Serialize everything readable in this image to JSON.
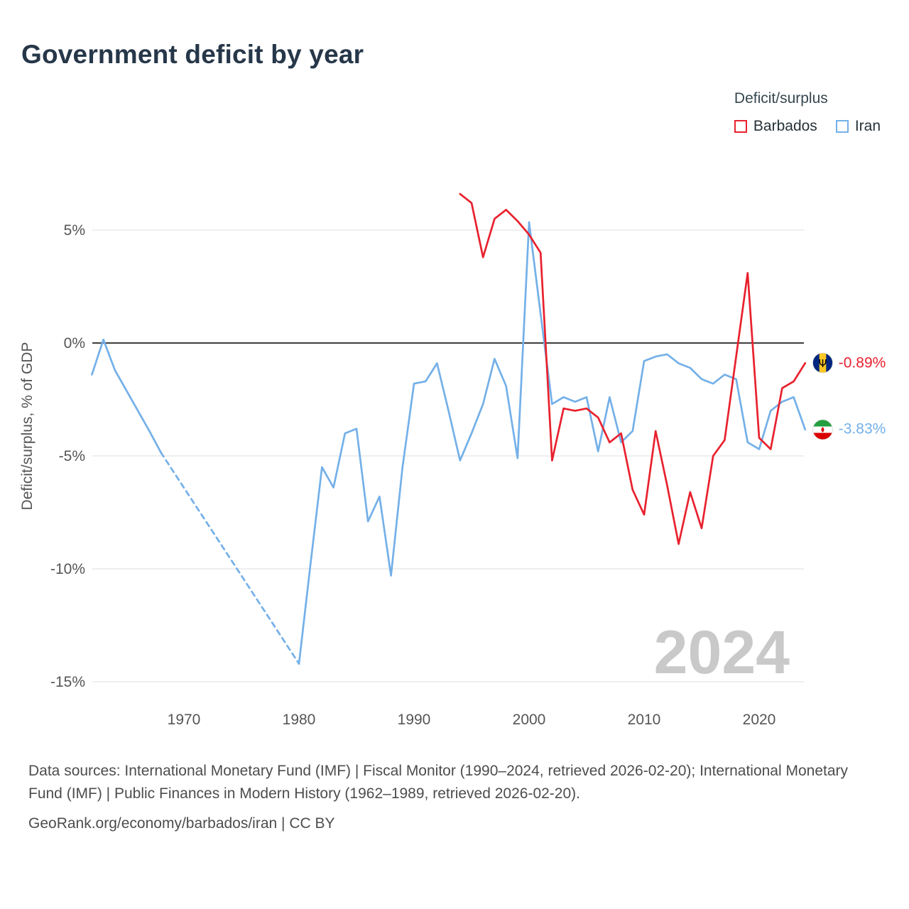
{
  "header": {
    "title": "Government deficit by year"
  },
  "legend": {
    "title": "Deficit/surplus",
    "items": [
      {
        "label": "Barbados",
        "color": "#e8212e"
      },
      {
        "label": "Iran",
        "color": "#74b0e8"
      }
    ]
  },
  "watermark": "2024",
  "footer": {
    "sources": "Data sources: International Monetary Fund (IMF) | Fiscal Monitor (1990–2024, retrieved 2026-02-20); International Monetary Fund (IMF) | Public Finances in Modern History (1962–1989, retrieved 2026-02-20).",
    "attribution": "GeoRank.org/economy/barbados/iran | CC BY"
  },
  "chart_data": {
    "type": "line",
    "title": "Government deficit by year",
    "ylabel": "Deficit/surplus, % of GDP",
    "xlabel": "",
    "ylim": [
      -16,
      7.5
    ],
    "xlim": [
      1962,
      2024
    ],
    "grid": "horizontal",
    "zero_line": true,
    "legend_position": "top-right",
    "yticks": {
      "values": [
        5,
        0,
        -5,
        -10,
        -15
      ],
      "labels": [
        "5%",
        "0%",
        "-5%",
        "-10%",
        "-15%"
      ]
    },
    "xticks": {
      "values": [
        1970,
        1980,
        1990,
        2000,
        2010,
        2020
      ],
      "labels": [
        "1970",
        "1980",
        "1990",
        "2000",
        "2010",
        "2020"
      ]
    },
    "series": [
      {
        "name": "Barbados",
        "color": "#e8212e",
        "end_label": "-0.89%",
        "segments": [
          {
            "style": "solid",
            "points": [
              [
                1994,
                6.6
              ],
              [
                1995,
                6.2
              ],
              [
                1996,
                3.8
              ],
              [
                1997,
                5.5
              ],
              [
                1998,
                5.9
              ],
              [
                1999,
                5.4
              ],
              [
                2000,
                4.8
              ],
              [
                2001,
                4.0
              ],
              [
                2002,
                -5.2
              ],
              [
                2003,
                -2.9
              ],
              [
                2004,
                -3.0
              ],
              [
                2005,
                -2.9
              ],
              [
                2006,
                -3.3
              ],
              [
                2007,
                -4.4
              ],
              [
                2008,
                -4.0
              ],
              [
                2009,
                -6.5
              ],
              [
                2010,
                -7.6
              ],
              [
                2011,
                -3.9
              ],
              [
                2012,
                -6.3
              ],
              [
                2013,
                -8.9
              ],
              [
                2014,
                -6.6
              ],
              [
                2015,
                -8.2
              ],
              [
                2016,
                -5.0
              ],
              [
                2017,
                -4.3
              ],
              [
                2018,
                -0.6
              ],
              [
                2019,
                3.1
              ],
              [
                2020,
                -4.2
              ],
              [
                2021,
                -4.7
              ],
              [
                2022,
                -2.0
              ],
              [
                2023,
                -1.7
              ],
              [
                2024,
                -0.89
              ]
            ]
          }
        ]
      },
      {
        "name": "Iran",
        "color": "#74b0e8",
        "end_label": "-3.83%",
        "segments": [
          {
            "style": "solid",
            "points": [
              [
                1962,
                -1.4
              ],
              [
                1963,
                0.15
              ],
              [
                1964,
                -1.2
              ],
              [
                1965,
                -2.1
              ],
              [
                1966,
                -3.0
              ],
              [
                1967,
                -3.9
              ],
              [
                1968,
                -4.85
              ]
            ]
          },
          {
            "style": "dashed",
            "points": [
              [
                1968,
                -4.85
              ],
              [
                1980,
                -14.2
              ]
            ]
          },
          {
            "style": "solid",
            "points": [
              [
                1980,
                -14.2
              ],
              [
                1981,
                -9.8
              ],
              [
                1982,
                -5.5
              ],
              [
                1983,
                -6.4
              ],
              [
                1984,
                -4.0
              ],
              [
                1985,
                -3.8
              ],
              [
                1986,
                -7.9
              ],
              [
                1987,
                -6.8
              ],
              [
                1988,
                -10.3
              ],
              [
                1989,
                -5.5
              ],
              [
                1990,
                -1.8
              ],
              [
                1991,
                -1.7
              ],
              [
                1992,
                -0.9
              ],
              [
                1993,
                -3.0
              ],
              [
                1994,
                -5.2
              ],
              [
                1995,
                -4.0
              ],
              [
                1996,
                -2.7
              ],
              [
                1997,
                -0.7
              ],
              [
                1998,
                -1.9
              ],
              [
                1999,
                -5.1
              ],
              [
                2000,
                5.35
              ],
              [
                2001,
                1.3
              ],
              [
                2002,
                -2.7
              ],
              [
                2003,
                -2.4
              ],
              [
                2004,
                -2.6
              ],
              [
                2005,
                -2.4
              ],
              [
                2006,
                -4.8
              ],
              [
                2007,
                -2.4
              ],
              [
                2008,
                -4.4
              ],
              [
                2009,
                -3.9
              ],
              [
                2010,
                -0.8
              ],
              [
                2011,
                -0.6
              ],
              [
                2012,
                -0.5
              ],
              [
                2013,
                -0.9
              ],
              [
                2014,
                -1.1
              ],
              [
                2015,
                -1.6
              ],
              [
                2016,
                -1.8
              ],
              [
                2017,
                -1.4
              ],
              [
                2018,
                -1.6
              ],
              [
                2019,
                -4.4
              ],
              [
                2020,
                -4.7
              ],
              [
                2021,
                -3.0
              ],
              [
                2022,
                -2.6
              ],
              [
                2023,
                -2.4
              ],
              [
                2024,
                -3.83
              ]
            ]
          }
        ]
      }
    ]
  }
}
